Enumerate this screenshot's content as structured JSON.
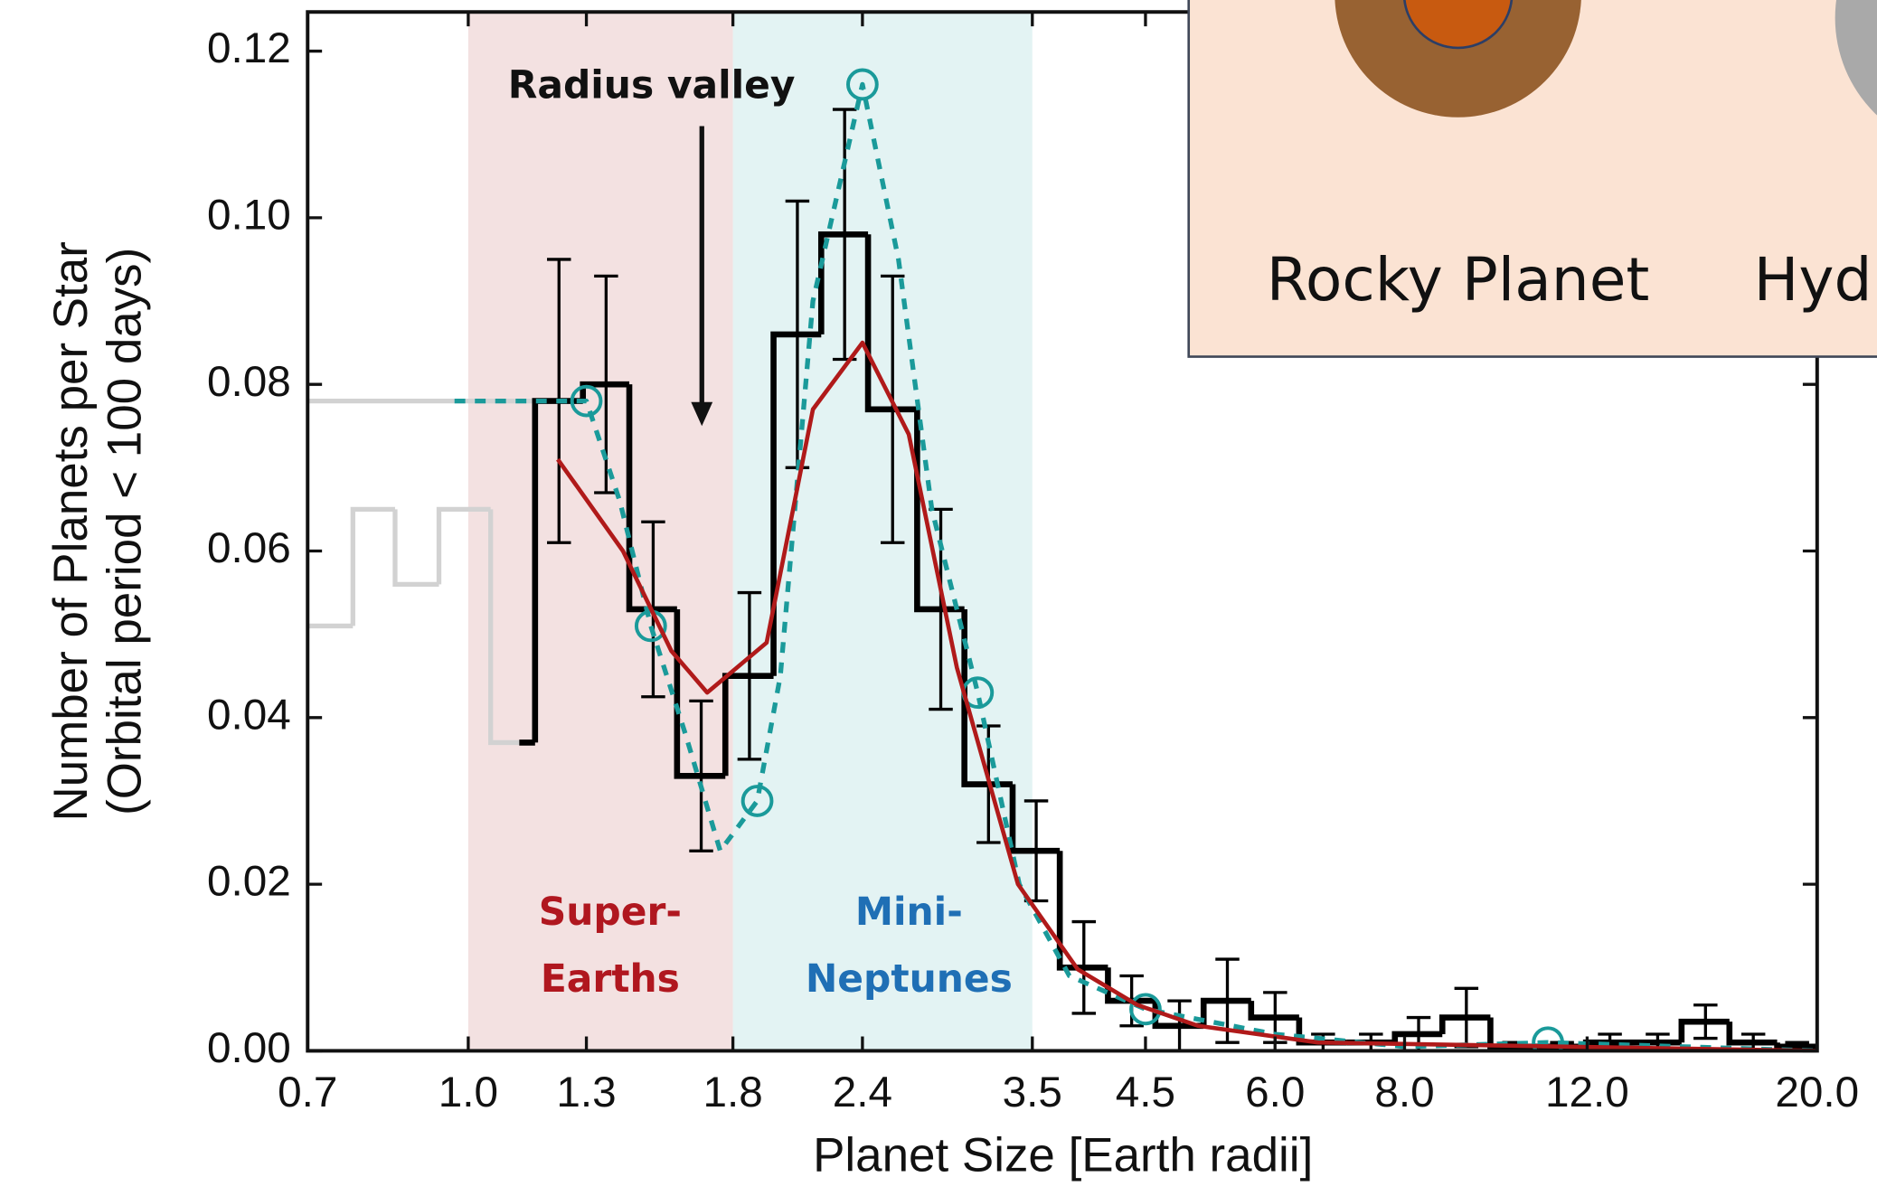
{
  "chart_data": {
    "type": "histogram",
    "x_label": "Planet Size [Earth radii]",
    "y_label": [
      "Number of Planets per Star",
      "(Orbital period < 100 days)"
    ],
    "log_x": true,
    "xlim": [
      0.7,
      20.0
    ],
    "ylim": [
      0,
      0.1247
    ],
    "xticks": [
      0.7,
      {
        "value": 1.0,
        "label": "1.0"
      },
      1.3,
      1.8,
      2.4,
      3.5,
      4.5,
      {
        "value": 6.0,
        "label": "6.0"
      },
      {
        "value": 8.0,
        "label": "8.0"
      },
      {
        "value": 12.0,
        "label": "12.0"
      },
      {
        "value": 20.0,
        "label": "20.0"
      }
    ],
    "yticks": [
      {
        "value": 0,
        "label": "0.00"
      },
      {
        "value": 0.02,
        "label": "0.02"
      },
      {
        "value": 0.04,
        "label": "0.04"
      },
      {
        "value": 0.06,
        "label": "0.06"
      },
      {
        "value": 0.08,
        "label": "0.08"
      },
      {
        "value": 0.1,
        "label": "0.10"
      },
      {
        "value": 0.12,
        "label": "0.12"
      }
    ],
    "regions": [
      {
        "xlim": [
          1.0,
          1.8
        ],
        "color": "#f3e1e1",
        "label": [
          "Super-",
          "Earths"
        ],
        "label_color": "#b0171f"
      },
      {
        "xlim": [
          1.8,
          3.5
        ],
        "color": "#e3f3f3",
        "label": [
          "Mini-",
          "Neptunes"
        ],
        "label_color": "#1f6fb5"
      }
    ],
    "histograms": [
      {
        "color": "#d2d2d2",
        "bins": [
          0.7,
          0.774,
          0.85,
          0.937,
          1.051,
          1.12
        ],
        "values": [
          0.051,
          0.065,
          0.056,
          0.065,
          0.037
        ]
      },
      {
        "color": "#d2d2d2",
        "bins": [
          0.7,
          1.16
        ],
        "values": [
          0.078
        ]
      },
      {
        "color": "#000000",
        "bins": [
          1.12,
          1.16,
          1.29,
          1.43,
          1.59,
          1.77,
          1.97,
          2.19,
          2.43,
          2.71,
          3.01,
          3.35,
          3.72,
          4.14,
          4.6,
          5.12,
          5.69,
          6.33,
          7.04,
          7.83,
          8.7,
          9.68,
          10.76,
          11.97,
          13.31,
          14.8,
          16.46,
          18.3,
          20.0
        ],
        "values": [
          0.037,
          0.078,
          0.08,
          0.053,
          0.033,
          0.045,
          0.086,
          0.098,
          0.077,
          0.053,
          0.032,
          0.024,
          0.01,
          0.006,
          0.003,
          0.006,
          0.004,
          0.001,
          0.001,
          0.002,
          0.004,
          0.0005,
          0.0005,
          0.001,
          0.001,
          0.0035,
          0.001,
          0.0005
        ],
        "errors": [
          null,
          0.017,
          0.013,
          0.0105,
          0.009,
          0.01,
          0.016,
          0.015,
          0.016,
          0.012,
          0.007,
          0.006,
          0.0055,
          0.003,
          0.003,
          0.005,
          0.003,
          0.001,
          0.001,
          0.002,
          0.0035,
          0.0005,
          0.0005,
          0.001,
          0.001,
          0.002,
          0.001,
          0.0005
        ]
      }
    ],
    "curves": [
      {
        "color": "#1a9a9a",
        "style": "dashed",
        "x": [
          0.97,
          1.3,
          1.4,
          1.5,
          1.62,
          1.75,
          1.9,
          2.0,
          2.15,
          2.4,
          2.6,
          2.8,
          3.1,
          3.4,
          3.8,
          4.5,
          6.0,
          8.0,
          11.0,
          20.0
        ],
        "y": [
          0.078,
          0.078,
          0.066,
          0.051,
          0.038,
          0.024,
          0.03,
          0.045,
          0.09,
          0.116,
          0.095,
          0.065,
          0.043,
          0.02,
          0.009,
          0.005,
          0.002,
          0.0005,
          0.001,
          0.0
        ],
        "markers": {
          "x": [
            1.3,
            1.5,
            1.9,
            2.4,
            3.1,
            4.5,
            11.0
          ],
          "y": [
            0.078,
            0.051,
            0.03,
            0.116,
            0.043,
            0.005,
            0.001
          ]
        }
      },
      {
        "color": "#b01a1a",
        "style": "solid",
        "x": [
          1.22,
          1.41,
          1.57,
          1.7,
          1.94,
          2.15,
          2.4,
          2.66,
          2.96,
          3.39,
          3.87,
          4.42,
          5.06,
          6.6,
          20.0
        ],
        "y": [
          0.071,
          0.06,
          0.048,
          0.043,
          0.049,
          0.077,
          0.085,
          0.074,
          0.046,
          0.02,
          0.0098,
          0.0055,
          0.003,
          0.001,
          0.0
        ]
      }
    ],
    "annotations": [
      {
        "text": "Radius valley",
        "x": 1.68,
        "y_start": 0.111,
        "y_end": 0.075
      }
    ],
    "inset": {
      "labels": [
        "Rocky Planet",
        "Hyd"
      ]
    }
  }
}
